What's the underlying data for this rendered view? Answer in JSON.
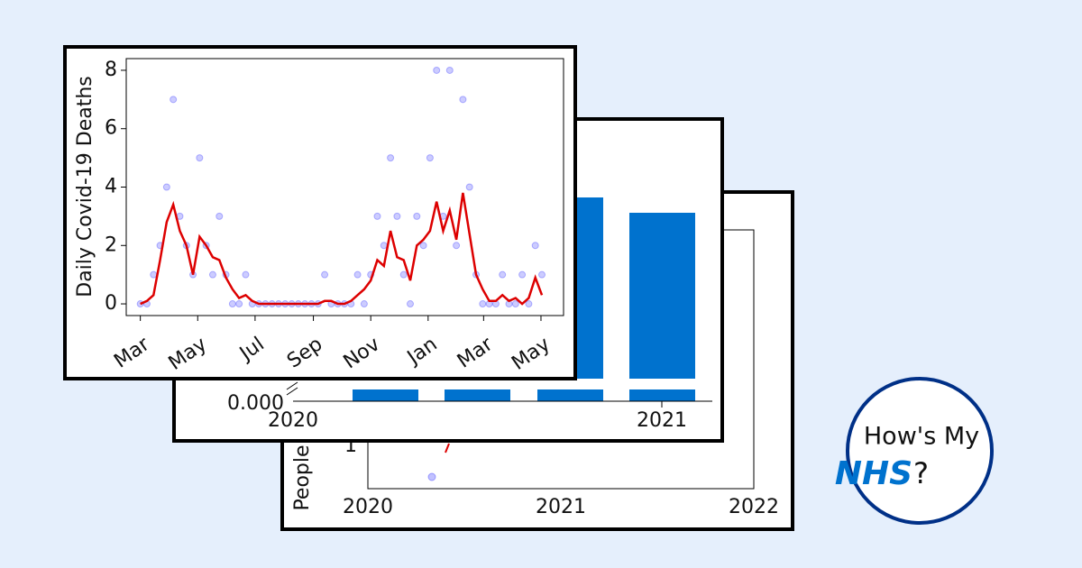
{
  "chart_data": {
    "type": "line",
    "ylabel": "Daily Covid-19 Deaths",
    "x": [
      0,
      7,
      14,
      21,
      28,
      35,
      42,
      49,
      56,
      63,
      70,
      77,
      84,
      91,
      98,
      105,
      112,
      119,
      126,
      133,
      140,
      147,
      154,
      161,
      168,
      175,
      182,
      189,
      196,
      203,
      210,
      217,
      224,
      231,
      238,
      245,
      252,
      259,
      266,
      273,
      280,
      287,
      294,
      301,
      308,
      315,
      322,
      329,
      336,
      343,
      350,
      357,
      364,
      371,
      378,
      385,
      392,
      399,
      406,
      413,
      420,
      427
    ],
    "xlim": [
      -15,
      450
    ],
    "xticks": [
      {
        "value": 0,
        "label": "Mar"
      },
      {
        "value": 61,
        "label": "May"
      },
      {
        "value": 122,
        "label": "Jul"
      },
      {
        "value": 184,
        "label": "Sep"
      },
      {
        "value": 245,
        "label": "Nov"
      },
      {
        "value": 306,
        "label": "Jan"
      },
      {
        "value": 365,
        "label": "Mar"
      },
      {
        "value": 426,
        "label": "May"
      }
    ],
    "ylim": [
      -0.4,
      8.4
    ],
    "yticks": [
      0,
      2,
      4,
      6,
      8
    ],
    "series": [
      {
        "type": "line",
        "color": "#dd0000",
        "values": [
          0,
          0.1,
          0.3,
          1.5,
          2.8,
          3.4,
          2.5,
          2.0,
          1.0,
          2.3,
          2.0,
          1.6,
          1.5,
          0.9,
          0.5,
          0.2,
          0.3,
          0.1,
          0,
          0,
          0,
          0,
          0,
          0,
          0,
          0,
          0,
          0,
          0.1,
          0.1,
          0,
          0,
          0.1,
          0.3,
          0.5,
          0.8,
          1.5,
          1.3,
          2.5,
          1.6,
          1.5,
          0.8,
          2.0,
          2.2,
          2.5,
          3.5,
          2.5,
          3.2,
          2.2,
          3.8,
          2.4,
          1.0,
          0.5,
          0.1,
          0.1,
          0.3,
          0.1,
          0.2,
          0,
          0.2,
          0.9,
          0.3
        ]
      },
      {
        "type": "scatter",
        "color": "#3333ff",
        "values": [
          0,
          0,
          1,
          2,
          4,
          7,
          3,
          2,
          1,
          5,
          2,
          1,
          3,
          1,
          0,
          0,
          1,
          0,
          0,
          0,
          0,
          0,
          0,
          0,
          0,
          0,
          0,
          0,
          1,
          0,
          0,
          0,
          0,
          1,
          0,
          1,
          3,
          2,
          5,
          3,
          1,
          0,
          3,
          2,
          5,
          8,
          3,
          8,
          2,
          7,
          4,
          1,
          0,
          0,
          0,
          1,
          0,
          0,
          1,
          0,
          2,
          1
        ]
      }
    ]
  },
  "middle_card": {
    "ytick": "0.000",
    "xticks": [
      "2020",
      "2021"
    ]
  },
  "back_card": {
    "ylabel": "People",
    "ytick": "1",
    "xticks": [
      "2020",
      "2021",
      "2022"
    ]
  },
  "logo": {
    "line1": "How's My",
    "nhs": "NHS",
    "mark": "?"
  }
}
